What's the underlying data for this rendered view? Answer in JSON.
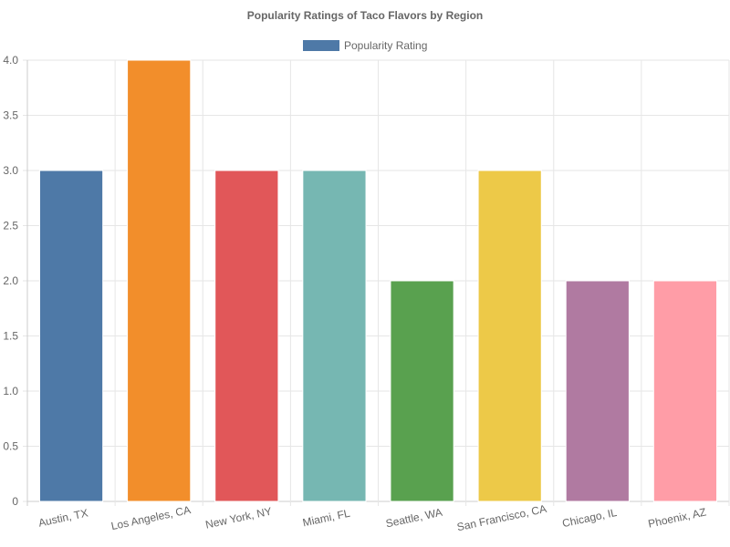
{
  "chart_data": {
    "type": "bar",
    "title": "Popularity Ratings of Taco Flavors by Region",
    "categories": [
      "Austin, TX",
      "Los Angeles, CA",
      "New York, NY",
      "Miami, FL",
      "Seattle, WA",
      "San Francisco, CA",
      "Chicago, IL",
      "Phoenix, AZ"
    ],
    "series": [
      {
        "name": "Popularity Rating",
        "values": [
          3,
          4,
          3,
          3,
          2,
          3,
          2,
          2
        ],
        "colors": [
          "#4e79a7",
          "#f28e2b",
          "#e15759",
          "#76b7b2",
          "#59a14f",
          "#edc948",
          "#b07aa1",
          "#ff9da7"
        ]
      }
    ],
    "legend_color": "#4e79a7",
    "xlabel": "",
    "ylabel": "",
    "ylim": [
      0,
      4
    ],
    "yticks": [
      "0",
      "0.5",
      "1.0",
      "1.5",
      "2.0",
      "2.5",
      "3.0",
      "3.5",
      "4.0"
    ],
    "grid": true,
    "legend_position": "top"
  }
}
